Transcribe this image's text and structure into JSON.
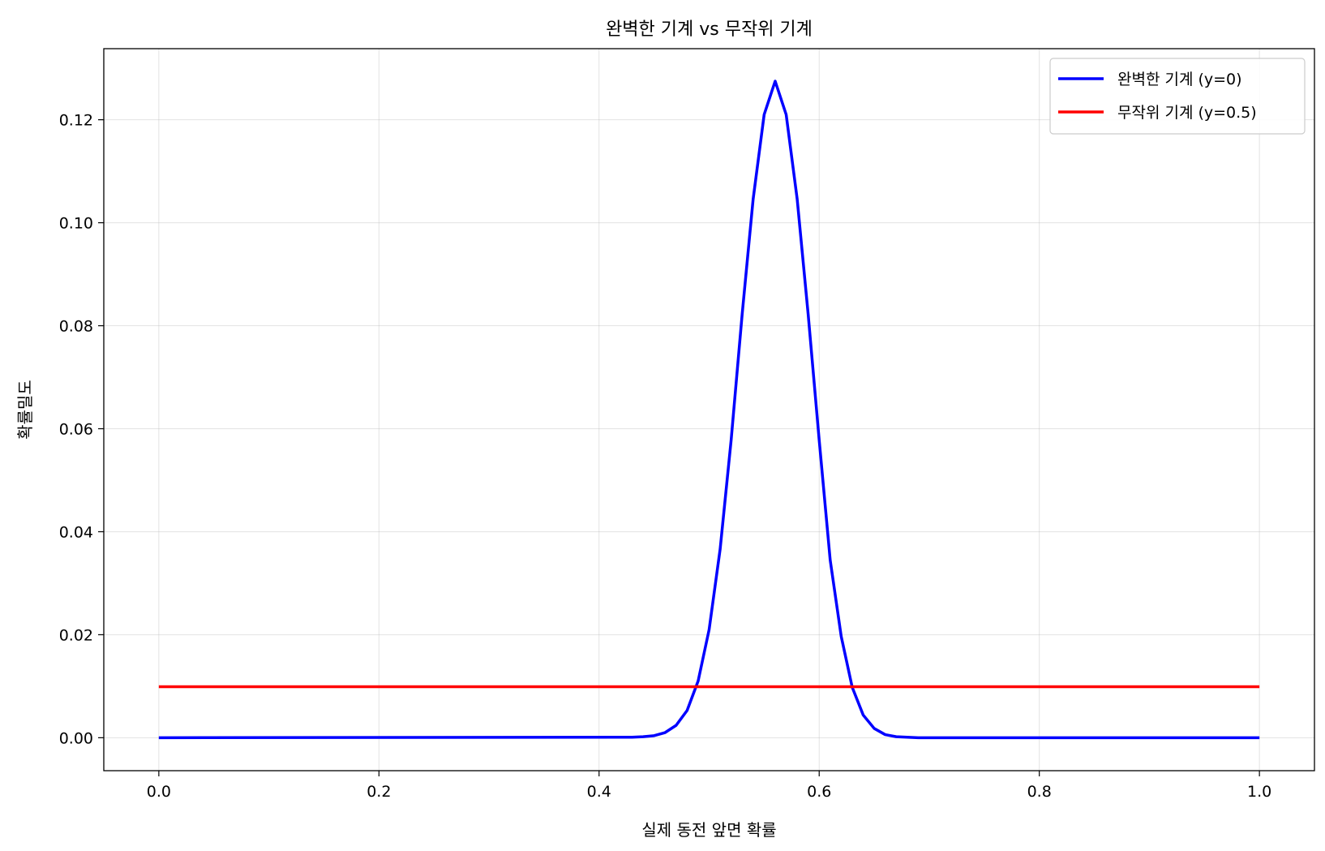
{
  "chart_data": {
    "type": "line",
    "title": "완벽한 기계 vs 무작위 기계",
    "xlabel": "실제 동전 앞면 확률",
    "ylabel": "확률밀도",
    "xlim": [
      -0.05,
      1.05
    ],
    "ylim": [
      -0.0064,
      0.1338
    ],
    "xticks": [
      0.0,
      0.2,
      0.4,
      0.6,
      0.8,
      1.0
    ],
    "xtick_labels": [
      "0.0",
      "0.2",
      "0.4",
      "0.6",
      "0.8",
      "1.0"
    ],
    "yticks": [
      0.0,
      0.02,
      0.04,
      0.06,
      0.08,
      0.1,
      0.12
    ],
    "ytick_labels": [
      "0.00",
      "0.02",
      "0.04",
      "0.06",
      "0.08",
      "0.10",
      "0.12"
    ],
    "grid": true,
    "legend_position": "top-right",
    "series": [
      {
        "name": "완벽한 기계 (y=0)",
        "color": "#0000ff",
        "x": [
          0.0,
          0.43,
          0.44,
          0.45,
          0.46,
          0.47,
          0.48,
          0.49,
          0.5,
          0.51,
          0.52,
          0.53,
          0.54,
          0.55,
          0.56,
          0.57,
          0.58,
          0.59,
          0.6,
          0.61,
          0.62,
          0.63,
          0.64,
          0.65,
          0.66,
          0.67,
          0.68,
          0.69,
          0.7,
          1.0
        ],
        "y": [
          0.0,
          0.0001,
          0.0002,
          0.0004,
          0.001,
          0.0024,
          0.0053,
          0.011,
          0.021,
          0.0366,
          0.0578,
          0.0822,
          0.1046,
          0.121,
          0.1275,
          0.121,
          0.1046,
          0.0822,
          0.0578,
          0.0345,
          0.0197,
          0.0098,
          0.0044,
          0.0018,
          0.0006,
          0.0002,
          0.0001,
          0.0,
          0.0,
          0.0
        ]
      },
      {
        "name": "무작위 기계 (y=0.5)",
        "color": "#ff0000",
        "x": [
          0.0,
          1.0
        ],
        "y": [
          0.0099,
          0.0099
        ]
      }
    ]
  }
}
